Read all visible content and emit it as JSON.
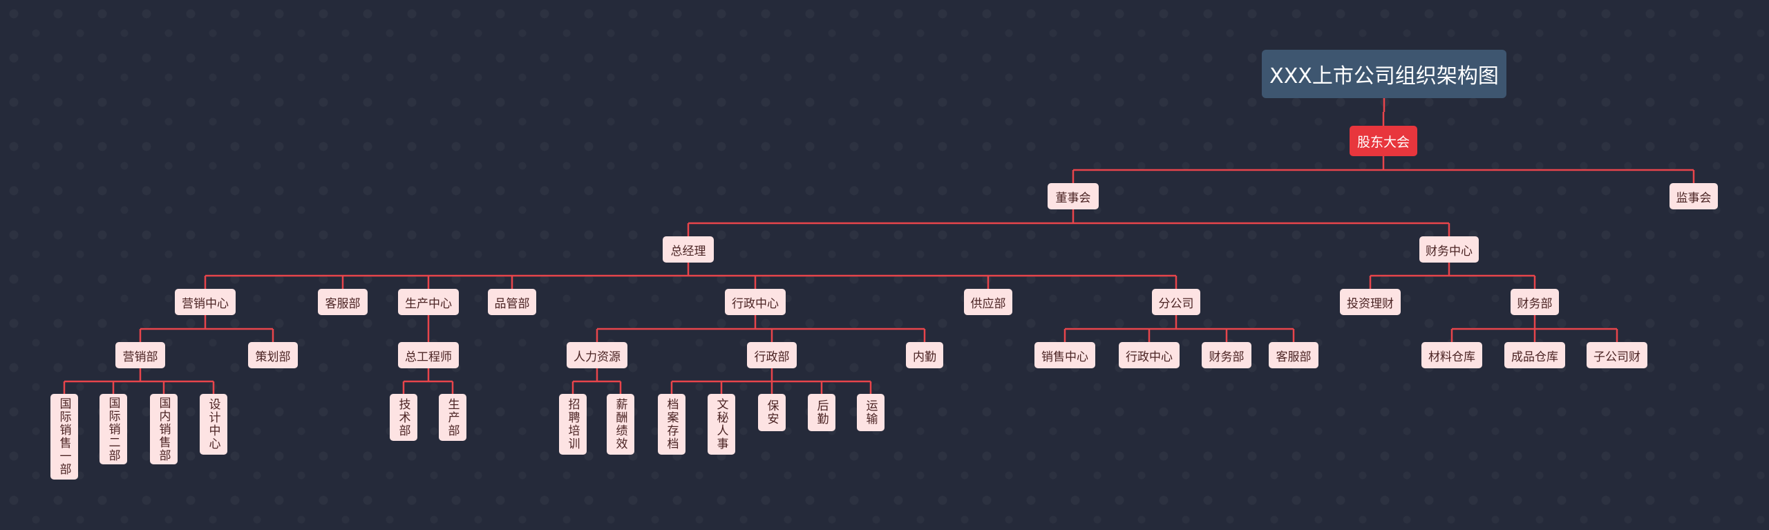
{
  "diagram": {
    "root": {
      "label": "XXX上市公司组织架构图",
      "children": [
        {
          "label": "股东大会",
          "children": [
            {
              "label": "董事会",
              "children": [
                {
                  "label": "总经理",
                  "children": [
                    {
                      "label": "营销中心",
                      "children": [
                        {
                          "label": "营销部",
                          "children": [
                            {
                              "label": "国际销售一部"
                            },
                            {
                              "label": "国际销二部"
                            },
                            {
                              "label": "国内销售部"
                            },
                            {
                              "label": "设计中心"
                            }
                          ]
                        },
                        {
                          "label": "策划部"
                        }
                      ]
                    },
                    {
                      "label": "客服部"
                    },
                    {
                      "label": "生产中心",
                      "children": [
                        {
                          "label": "总工程师",
                          "children": [
                            {
                              "label": "技术部"
                            },
                            {
                              "label": "生产部"
                            }
                          ]
                        }
                      ]
                    },
                    {
                      "label": "品管部"
                    },
                    {
                      "label": "行政中心",
                      "children": [
                        {
                          "label": "人力资源",
                          "children": [
                            {
                              "label": "招聘培训"
                            },
                            {
                              "label": "薪酬绩效"
                            }
                          ]
                        },
                        {
                          "label": "行政部",
                          "children": [
                            {
                              "label": "档案存档"
                            },
                            {
                              "label": "文秘人事"
                            },
                            {
                              "label": "保安"
                            },
                            {
                              "label": "后勤"
                            },
                            {
                              "label": "运输"
                            }
                          ]
                        },
                        {
                          "label": "内勤"
                        }
                      ]
                    },
                    {
                      "label": "供应部"
                    },
                    {
                      "label": "分公司",
                      "children": [
                        {
                          "label": "销售中心"
                        },
                        {
                          "label": "行政中心"
                        },
                        {
                          "label": "财务部"
                        },
                        {
                          "label": "客服部"
                        }
                      ]
                    }
                  ]
                },
                {
                  "label": "财务中心",
                  "children": [
                    {
                      "label": "投资理财"
                    },
                    {
                      "label": "财务部",
                      "children": [
                        {
                          "label": "材料仓库"
                        },
                        {
                          "label": "成品仓库"
                        },
                        {
                          "label": "子公司财"
                        }
                      ]
                    }
                  ]
                }
              ]
            },
            {
              "label": "监事会"
            }
          ]
        }
      ]
    }
  },
  "colors": {
    "background": "#252a3a",
    "link": "#e8454b",
    "root_fill": "#3e5670",
    "level1_fill": "#e8363d",
    "node_fill": "#fde3e3",
    "node_text": "#4a2323"
  }
}
